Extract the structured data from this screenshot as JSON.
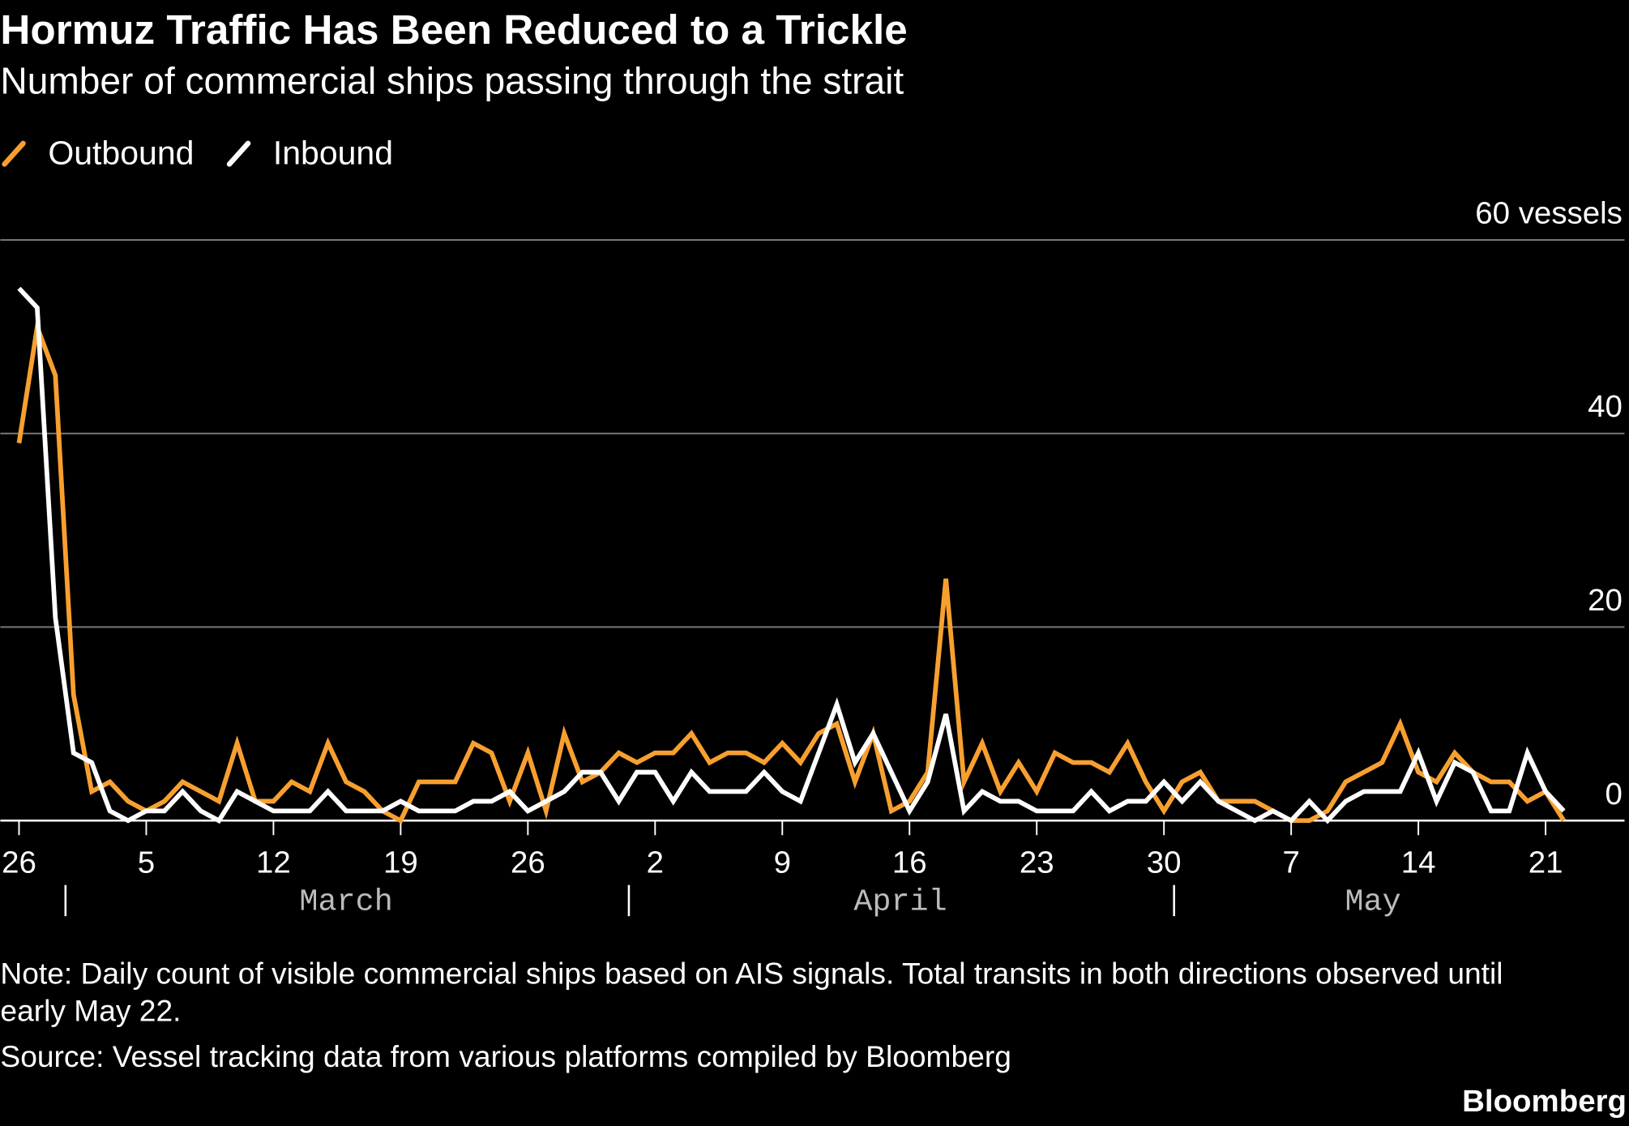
{
  "chart_data": {
    "type": "line",
    "title": "Hormuz Traffic Has Been Reduced to a Trickle",
    "subtitle": "Number of commercial ships passing through the strait",
    "legend": "top-left",
    "grid": true,
    "categories": [
      "26",
      null,
      null,
      null,
      null,
      null,
      null,
      "5",
      null,
      null,
      null,
      null,
      null,
      null,
      "12",
      null,
      null,
      null,
      null,
      null,
      null,
      "19",
      null,
      null,
      null,
      null,
      null,
      null,
      "26",
      null,
      null,
      null,
      null,
      null,
      null,
      "2",
      null,
      null,
      null,
      null,
      null,
      null,
      "9",
      null,
      null,
      null,
      null,
      null,
      null,
      "16",
      null,
      null,
      null,
      null,
      null,
      null,
      "23",
      null,
      null,
      null,
      null,
      null,
      null,
      "30",
      null,
      null,
      null,
      null,
      null,
      null,
      "7",
      null,
      null,
      null,
      null,
      null,
      null,
      "14",
      null,
      null,
      null,
      null,
      null,
      null,
      "21",
      null
    ],
    "months": [
      "March",
      "April",
      "May"
    ],
    "ylim": [
      0,
      60
    ],
    "yticks": [
      0,
      20,
      40,
      {
        "value": 60,
        "label": "60 vessels"
      }
    ],
    "series": [
      {
        "name": "Outbound",
        "color": "#f7a030",
        "values": [
          39,
          51,
          46,
          13,
          3,
          4,
          2,
          1,
          2,
          4,
          3,
          2,
          8,
          2,
          2,
          4,
          3,
          8,
          4,
          3,
          1,
          0,
          4,
          4,
          4,
          8,
          7,
          2,
          7,
          1,
          9,
          4,
          5,
          7,
          6,
          7,
          7,
          9,
          6,
          7,
          7,
          6,
          8,
          6,
          9,
          10,
          4,
          9,
          1,
          2,
          5,
          25,
          4,
          8,
          3,
          6,
          3,
          7,
          6,
          6,
          5,
          8,
          4,
          1,
          4,
          5,
          2,
          2,
          2,
          1,
          0,
          0,
          1,
          4,
          5,
          6,
          10,
          5,
          4,
          7,
          5,
          4,
          4,
          2,
          3,
          0
        ]
      },
      {
        "name": "Inbound",
        "color": "#ffffff",
        "values": [
          55,
          53,
          21,
          7,
          6,
          1,
          0,
          1,
          1,
          3,
          1,
          0,
          3,
          2,
          1,
          1,
          1,
          3,
          1,
          1,
          1,
          2,
          1,
          1,
          1,
          2,
          2,
          3,
          1,
          2,
          3,
          5,
          5,
          2,
          5,
          5,
          2,
          5,
          3,
          3,
          3,
          5,
          3,
          2,
          7,
          12,
          6,
          9,
          5,
          1,
          4,
          11,
          1,
          3,
          2,
          2,
          1,
          1,
          1,
          3,
          1,
          2,
          2,
          4,
          2,
          4,
          2,
          1,
          0,
          1,
          0,
          2,
          0,
          2,
          3,
          3,
          3,
          7,
          2,
          6,
          5,
          1,
          1,
          7,
          3,
          1
        ]
      }
    ]
  },
  "note": "Note: Daily count of visible commercial ships based on AIS signals. Total transits in both directions observed until early May 22.",
  "source": "Source: Vessel tracking data from various platforms compiled by Bloomberg",
  "brand": "Bloomberg"
}
